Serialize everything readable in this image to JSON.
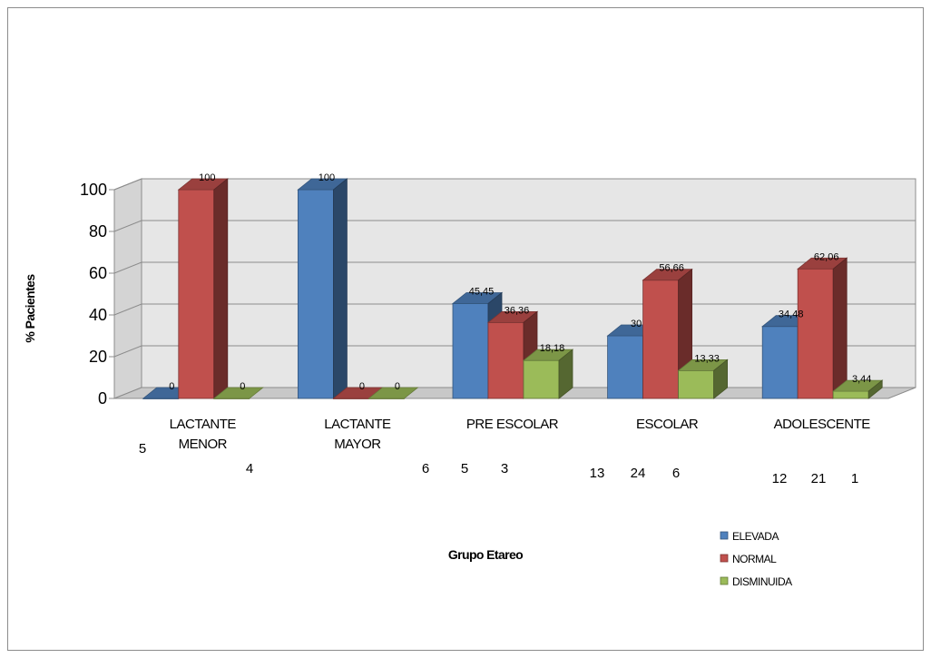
{
  "chart_data": {
    "type": "bar",
    "style": "3d-clustered-column",
    "categories": [
      "LACTANTE MENOR",
      "LACTANTE MAYOR",
      "PRE ESCOLAR",
      "ESCOLAR",
      "ADOLESCENTE"
    ],
    "category_lines": [
      [
        "LACTANTE",
        "MENOR"
      ],
      [
        "LACTANTE",
        "MAYOR"
      ],
      [
        "PRE ESCOLAR"
      ],
      [
        "ESCOLAR"
      ],
      [
        "ADOLESCENTE"
      ]
    ],
    "series": [
      {
        "name": "ELEVADA",
        "color": "#4f81bd",
        "values": [
          0,
          100,
          45.45,
          30,
          34.48
        ],
        "labels": [
          "0",
          "100",
          "45,45",
          "30",
          "34,48"
        ]
      },
      {
        "name": "NORMAL",
        "color": "#c0504d",
        "values": [
          100,
          0,
          36.36,
          56.66,
          62.06
        ],
        "labels": [
          "100",
          "0",
          "36,36",
          "56,66",
          "62,06"
        ]
      },
      {
        "name": "DISMINUIDA",
        "color": "#9bbb59",
        "values": [
          0,
          0,
          18.18,
          13.33,
          3.44
        ],
        "labels": [
          "0",
          "0",
          "18,18",
          "13,33",
          "3,44"
        ]
      }
    ],
    "counts": [
      [
        "5",
        "",
        "4"
      ],
      [
        "6",
        "",
        ""
      ],
      [
        "5",
        "3",
        ""
      ],
      [
        "13",
        "24",
        "6"
      ],
      [
        "12",
        "21",
        "1"
      ]
    ],
    "y_ticks": [
      "0",
      "20",
      "40",
      "60",
      "80",
      "100"
    ],
    "ylim": [
      0,
      100
    ],
    "xlabel": "Grupo Etareo",
    "ylabel": "% Pacientes",
    "title": "",
    "grid": true,
    "legend_position": "bottom-right"
  }
}
